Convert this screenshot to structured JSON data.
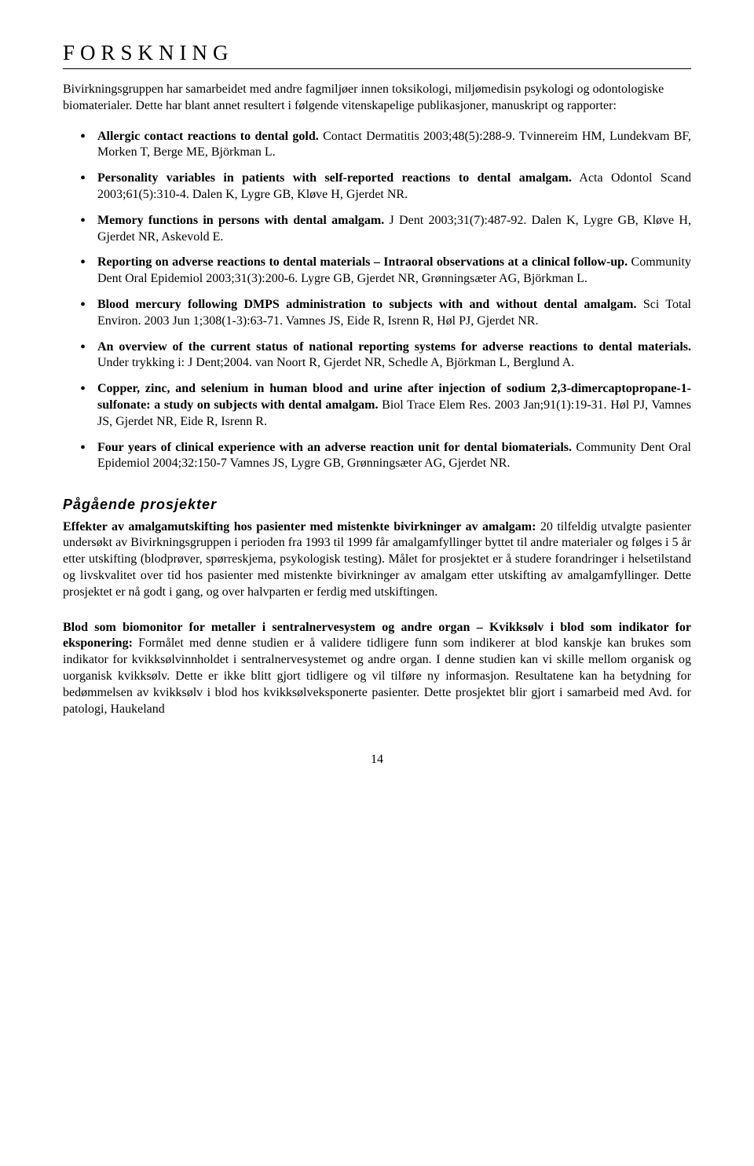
{
  "section_header": "FORSKNING",
  "intro": "Bivirkningsgruppen har samarbeidet med andre fagmiljøer innen toksikologi, miljømedisin psykologi og odontologiske biomaterialer. Dette har blant annet resultert i følgende vitenskapelige publikasjoner, manuskript og rapporter:",
  "publications": [
    {
      "title": "Allergic contact reactions to dental gold.",
      "rest": " Contact Dermatitis 2003;48(5):288-9. Tvinnereim HM, Lundekvam BF, Morken T, Berge ME, Björkman L."
    },
    {
      "title": "Personality variables in patients with self-reported reactions to dental amalgam.",
      "rest": " Acta Odontol Scand 2003;61(5):310-4. Dalen K, Lygre GB, Kløve H, Gjerdet NR."
    },
    {
      "title": "Memory functions in persons with dental amalgam.",
      "rest": " J Dent 2003;31(7):487-92. Dalen K, Lygre GB, Kløve H, Gjerdet NR, Askevold E."
    },
    {
      "title": "Reporting on adverse reactions to dental materials – Intraoral observations at a clinical follow-up.",
      "rest": " Community Dent Oral Epidemiol 2003;31(3):200-6. Lygre GB, Gjerdet NR, Grønningsæter AG, Björkman L."
    },
    {
      "title": "Blood mercury following DMPS administration to subjects with and without dental amalgam.",
      "rest": " Sci Total Environ. 2003 Jun 1;308(1-3):63-71. Vamnes JS, Eide R, Isrenn R, Høl PJ, Gjerdet NR."
    },
    {
      "title": "An overview of the current status of national reporting systems for adverse reactions to dental materials.",
      "rest": " Under trykking i: J Dent;2004. van Noort R, Gjerdet NR, Schedle A, Björkman L, Berglund A."
    },
    {
      "title": "Copper, zinc, and selenium in human blood and urine after injection of sodium 2,3-dimercaptopropane-1-sulfonate: a study on subjects with dental amalgam.",
      "rest": " Biol Trace Elem Res. 2003 Jan;91(1):19-31. Høl PJ, Vamnes JS, Gjerdet NR, Eide R, Isrenn R."
    },
    {
      "title": "Four  years of clinical experience with an adverse reaction unit for dental biomaterials.",
      "rest": " Community Dent Oral Epidemiol 2004;32:150-7 Vamnes JS, Lygre GB, Grønningsæter AG, Gjerdet NR."
    }
  ],
  "subhead": "Pågående prosjekter",
  "projects": [
    {
      "title": "Effekter av amalgamutskifting hos pasienter med mistenkte bivirkninger av amalgam:",
      "body": " 20 tilfeldig utvalgte pasienter undersøkt av Bivirkningsgruppen i perioden fra 1993 til 1999 får amalgamfyllinger byttet til andre materialer og følges i 5 år etter utskifting (blodprøver, spørreskjema, psykologisk testing).  Målet for prosjektet er å studere forandringer i helsetilstand og livskvalitet over tid hos pasienter med mistenkte bivirkninger av amalgam etter utskifting av amalgamfyllinger.  Dette prosjektet er nå godt i gang, og over halvparten er ferdig med utskiftingen."
    },
    {
      "title": "Blod som biomonitor for metaller i sentralnervesystem og andre organ – Kvikksølv i blod som indikator for eksponering:",
      "body": "  Formålet med denne studien er å validere tidligere funn som indikerer at blod kanskje kan brukes som indikator for kvikksølvinnholdet i sentralnervesystemet og andre organ.  I denne studien kan vi skille mellom organisk og uorganisk kvikksølv.  Dette er ikke blitt gjort tidligere og vil tilføre ny informasjon. Resultatene kan ha betydning for bedømmelsen av kvikksølv i blod hos kvikksølveksponerte pasienter.  Dette prosjektet blir gjort i samarbeid med Avd. for patologi, Haukeland"
    }
  ],
  "page_number": "14"
}
